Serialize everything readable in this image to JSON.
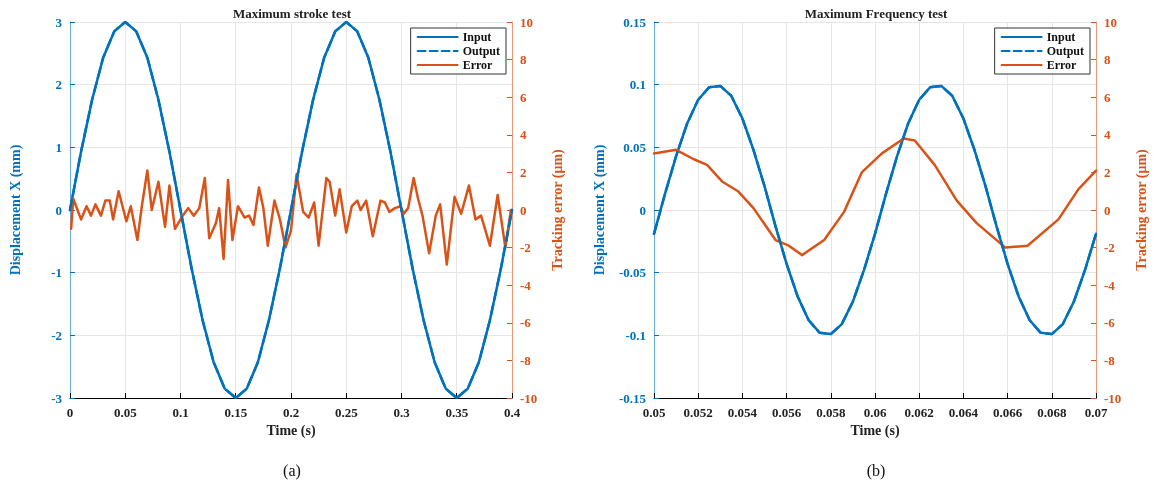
{
  "chart_data": [
    {
      "type": "line",
      "title": "Maximum stroke test",
      "xlabel": "Time (s)",
      "ylabel": "Displacement X (mm)",
      "y2label": "Tracking error (μm)",
      "annotations": [
        "(a)"
      ],
      "xlim": [
        0,
        0.4
      ],
      "xticks": [
        0,
        0.05,
        0.1,
        0.15,
        0.2,
        0.25,
        0.3,
        0.35,
        0.4
      ],
      "ylim": [
        -3,
        3
      ],
      "yticks": [
        -3,
        -2,
        -1,
        0,
        1,
        2,
        3
      ],
      "y2lim": [
        -10,
        10
      ],
      "y2ticks": [
        -10,
        -8,
        -6,
        -4,
        -2,
        0,
        2,
        4,
        6,
        8,
        10
      ],
      "grid": true,
      "legend": "top right",
      "marker": "none",
      "series": [
        {
          "name": "Input",
          "color": "#0072bd",
          "line_style": "solid",
          "x": [
            0,
            0.01,
            0.02,
            0.03,
            0.04,
            0.05,
            0.06,
            0.07,
            0.08,
            0.09,
            0.1,
            0.11,
            0.12,
            0.13,
            0.14,
            0.15,
            0.16,
            0.17,
            0.18,
            0.19,
            0.2,
            0.21,
            0.22,
            0.23,
            0.24,
            0.25,
            0.26,
            0.27,
            0.28,
            0.29,
            0.3,
            0.31,
            0.32,
            0.33,
            0.34,
            0.35,
            0.36,
            0.37,
            0.38,
            0.39,
            0.4
          ],
          "values": [
            0,
            0.93,
            1.76,
            2.43,
            2.85,
            3,
            2.85,
            2.43,
            1.76,
            0.93,
            0,
            -0.93,
            -1.76,
            -2.43,
            -2.85,
            -3,
            -2.85,
            -2.43,
            -1.76,
            -0.93,
            0,
            0.93,
            1.76,
            2.43,
            2.85,
            3,
            2.85,
            2.43,
            1.76,
            0.93,
            0,
            -0.93,
            -1.76,
            -2.43,
            -2.85,
            -3,
            -2.85,
            -2.43,
            -1.76,
            -0.93,
            0
          ]
        },
        {
          "name": "Output",
          "color": "#0072bd",
          "line_style": "dashed",
          "x": [
            0,
            0.01,
            0.02,
            0.03,
            0.04,
            0.05,
            0.06,
            0.07,
            0.08,
            0.09,
            0.1,
            0.11,
            0.12,
            0.13,
            0.14,
            0.15,
            0.16,
            0.17,
            0.18,
            0.19,
            0.2,
            0.21,
            0.22,
            0.23,
            0.24,
            0.25,
            0.26,
            0.27,
            0.28,
            0.29,
            0.3,
            0.31,
            0.32,
            0.33,
            0.34,
            0.35,
            0.36,
            0.37,
            0.38,
            0.39,
            0.4
          ],
          "values": [
            0,
            0.93,
            1.76,
            2.43,
            2.85,
            3,
            2.85,
            2.43,
            1.76,
            0.93,
            0,
            -0.93,
            -1.76,
            -2.43,
            -2.85,
            -3,
            -2.85,
            -2.43,
            -1.76,
            -0.93,
            0,
            0.93,
            1.76,
            2.43,
            2.85,
            3,
            2.85,
            2.43,
            1.76,
            0.93,
            0,
            -0.93,
            -1.76,
            -2.43,
            -2.85,
            -3,
            -2.85,
            -2.43,
            -1.76,
            -0.93,
            0
          ]
        },
        {
          "name": "Error",
          "color": "#d95319",
          "line_style": "solid",
          "axis": "y2",
          "x": [
            0.001,
            0.003,
            0.01,
            0.015,
            0.019,
            0.023,
            0.028,
            0.032,
            0.036,
            0.039,
            0.044,
            0.051,
            0.055,
            0.061,
            0.065,
            0.07,
            0.074,
            0.08,
            0.086,
            0.09,
            0.095,
            0.102,
            0.107,
            0.112,
            0.117,
            0.122,
            0.126,
            0.132,
            0.135,
            0.139,
            0.143,
            0.147,
            0.152,
            0.158,
            0.162,
            0.166,
            0.171,
            0.175,
            0.179,
            0.185,
            0.19,
            0.195,
            0.2,
            0.205,
            0.211,
            0.216,
            0.221,
            0.225,
            0.232,
            0.235,
            0.24,
            0.244,
            0.25,
            0.255,
            0.26,
            0.263,
            0.268,
            0.274,
            0.281,
            0.285,
            0.289,
            0.294,
            0.299,
            0.302,
            0.306,
            0.311,
            0.315,
            0.319,
            0.325,
            0.331,
            0.335,
            0.341,
            0.348,
            0.354,
            0.361,
            0.367,
            0.372,
            0.38,
            0.387,
            0.394,
            0.399
          ],
          "values": [
            -1.0,
            0.6,
            -0.5,
            0.2,
            -0.3,
            0.3,
            -0.3,
            0.5,
            0.5,
            -0.5,
            1.0,
            -0.6,
            0.2,
            -1.6,
            0.2,
            2.1,
            0.0,
            1.5,
            -0.9,
            1.3,
            -1.0,
            -0.3,
            0.1,
            -0.3,
            0.1,
            1.7,
            -1.5,
            -0.7,
            0.1,
            -2.6,
            1.6,
            -1.6,
            0.2,
            -0.4,
            -0.3,
            -0.8,
            1.2,
            0.1,
            -1.9,
            0.5,
            -0.5,
            -2.0,
            -1.1,
            1.9,
            -0.1,
            -0.4,
            0.4,
            -1.9,
            1.7,
            1.5,
            -0.3,
            1.1,
            -1.2,
            0.2,
            0.5,
            0.0,
            0.5,
            -1.4,
            0.5,
            0.4,
            -0.1,
            0.1,
            0.2,
            -0.2,
            0.1,
            1.7,
            0.6,
            -0.3,
            -2.3,
            -0.3,
            0.3,
            -2.9,
            0.7,
            -0.2,
            1.3,
            -0.5,
            -0.3,
            -1.9,
            0.8,
            -2.0,
            0.0
          ]
        }
      ]
    },
    {
      "type": "line",
      "title": "Maximum Frequency test",
      "xlabel": "Time (s)",
      "ylabel": "Displacement X (mm)",
      "y2label": "Tracking error (μm)",
      "annotations": [
        "(b)"
      ],
      "xlim": [
        0.05,
        0.07
      ],
      "xticks": [
        0.05,
        0.052,
        0.054,
        0.056,
        0.058,
        0.06,
        0.062,
        0.064,
        0.066,
        0.068,
        0.07
      ],
      "ylim": [
        -0.15,
        0.15
      ],
      "yticks": [
        -0.15,
        -0.1,
        -0.05,
        0,
        0.05,
        0.1,
        0.15
      ],
      "y2lim": [
        -10,
        10
      ],
      "y2ticks": [
        -10,
        -8,
        -6,
        -4,
        -2,
        0,
        2,
        4,
        6,
        8,
        10
      ],
      "grid": true,
      "legend": "top right",
      "marker": "none",
      "series": [
        {
          "name": "Input",
          "color": "#0072bd",
          "line_style": "solid",
          "x": [
            0.05,
            0.0505,
            0.051,
            0.0515,
            0.052,
            0.0525,
            0.053,
            0.0535,
            0.054,
            0.0545,
            0.055,
            0.0555,
            0.056,
            0.0565,
            0.057,
            0.0575,
            0.058,
            0.0585,
            0.059,
            0.0595,
            0.06,
            0.0605,
            0.061,
            0.0615,
            0.062,
            0.0625,
            0.063,
            0.0635,
            0.064,
            0.0645,
            0.065,
            0.0655,
            0.066,
            0.0665,
            0.067,
            0.0675,
            0.068,
            0.0685,
            0.069,
            0.0695,
            0.07
          ],
          "values": [
            -0.019,
            0.013,
            0.043,
            0.069,
            0.088,
            0.098,
            0.099,
            0.091,
            0.073,
            0.048,
            0.019,
            -0.013,
            -0.043,
            -0.069,
            -0.088,
            -0.098,
            -0.099,
            -0.091,
            -0.073,
            -0.048,
            -0.019,
            0.013,
            0.043,
            0.069,
            0.088,
            0.098,
            0.099,
            0.091,
            0.073,
            0.048,
            0.019,
            -0.013,
            -0.043,
            -0.069,
            -0.088,
            -0.098,
            -0.099,
            -0.091,
            -0.073,
            -0.048,
            -0.019
          ]
        },
        {
          "name": "Output",
          "color": "#0072bd",
          "line_style": "dashed",
          "x": [
            0.05,
            0.0505,
            0.051,
            0.0515,
            0.052,
            0.0525,
            0.053,
            0.0535,
            0.054,
            0.0545,
            0.055,
            0.0555,
            0.056,
            0.0565,
            0.057,
            0.0575,
            0.058,
            0.0585,
            0.059,
            0.0595,
            0.06,
            0.0605,
            0.061,
            0.0615,
            0.062,
            0.0625,
            0.063,
            0.0635,
            0.064,
            0.0645,
            0.065,
            0.0655,
            0.066,
            0.0665,
            0.067,
            0.0675,
            0.068,
            0.0685,
            0.069,
            0.0695,
            0.07
          ],
          "values": [
            -0.019,
            0.013,
            0.043,
            0.069,
            0.088,
            0.098,
            0.099,
            0.091,
            0.073,
            0.048,
            0.019,
            -0.013,
            -0.043,
            -0.069,
            -0.088,
            -0.098,
            -0.099,
            -0.091,
            -0.073,
            -0.048,
            -0.019,
            0.013,
            0.043,
            0.069,
            0.088,
            0.098,
            0.099,
            0.091,
            0.073,
            0.048,
            0.019,
            -0.013,
            -0.043,
            -0.069,
            -0.088,
            -0.098,
            -0.099,
            -0.091,
            -0.073,
            -0.048,
            -0.019
          ]
        },
        {
          "name": "Error",
          "color": "#d95319",
          "line_style": "solid",
          "axis": "y2",
          "x": [
            0.05,
            0.051,
            0.0518,
            0.0524,
            0.0531,
            0.0538,
            0.0545,
            0.0555,
            0.0561,
            0.0567,
            0.0577,
            0.0586,
            0.0594,
            0.0603,
            0.0613,
            0.0618,
            0.0627,
            0.0637,
            0.0646,
            0.0659,
            0.0669,
            0.0683,
            0.0692,
            0.07
          ],
          "values": [
            3.0,
            3.2,
            2.7,
            2.4,
            1.5,
            1.0,
            0.1,
            -1.6,
            -1.9,
            -2.4,
            -1.6,
            -0.1,
            2.0,
            3.0,
            3.8,
            3.7,
            2.4,
            0.5,
            -0.7,
            -2.0,
            -1.9,
            -0.5,
            1.1,
            2.1
          ]
        }
      ]
    }
  ]
}
